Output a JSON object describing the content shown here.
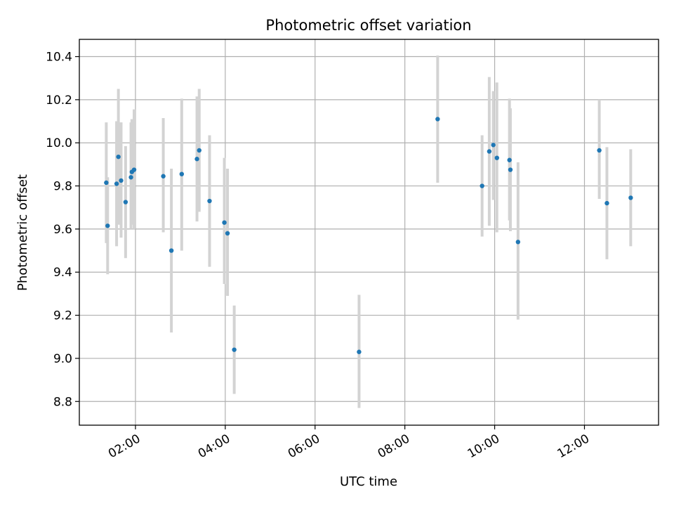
{
  "chart_data": {
    "type": "scatter",
    "title": "Photometric offset variation",
    "xlabel": "UTC time",
    "ylabel": "Photometric offset",
    "xlim_hours": [
      0.75,
      13.65
    ],
    "ylim": [
      8.69,
      10.48
    ],
    "x_ticks": [
      {
        "label": "02:00",
        "hours": 2
      },
      {
        "label": "04:00",
        "hours": 4
      },
      {
        "label": "06:00",
        "hours": 6
      },
      {
        "label": "08:00",
        "hours": 8
      },
      {
        "label": "10:00",
        "hours": 10
      },
      {
        "label": "12:00",
        "hours": 12
      }
    ],
    "y_ticks": [
      {
        "label": "8.8",
        "value": 8.8
      },
      {
        "label": "9.0",
        "value": 9.0
      },
      {
        "label": "9.2",
        "value": 9.2
      },
      {
        "label": "9.4",
        "value": 9.4
      },
      {
        "label": "9.6",
        "value": 9.6
      },
      {
        "label": "9.8",
        "value": 9.8
      },
      {
        "label": "10.0",
        "value": 10.0
      },
      {
        "label": "10.2",
        "value": 10.2
      },
      {
        "label": "10.4",
        "value": 10.4
      }
    ],
    "grid": true,
    "point_color": "#1f77b4",
    "errorbar_color": "#d3d3d3",
    "points": [
      {
        "hours": 1.35,
        "y": 9.815,
        "lo": 9.535,
        "hi": 10.095
      },
      {
        "hours": 1.38,
        "y": 9.615,
        "lo": 9.39,
        "hi": 9.84
      },
      {
        "hours": 1.58,
        "y": 9.81,
        "lo": 9.52,
        "hi": 10.1
      },
      {
        "hours": 1.62,
        "y": 9.935,
        "lo": 9.62,
        "hi": 10.25
      },
      {
        "hours": 1.68,
        "y": 9.825,
        "lo": 9.56,
        "hi": 10.095
      },
      {
        "hours": 1.78,
        "y": 9.725,
        "lo": 9.465,
        "hi": 9.985
      },
      {
        "hours": 1.9,
        "y": 9.84,
        "lo": 9.6,
        "hi": 10.095
      },
      {
        "hours": 1.92,
        "y": 9.865,
        "lo": 9.62,
        "hi": 10.11
      },
      {
        "hours": 1.97,
        "y": 9.875,
        "lo": 9.6,
        "hi": 10.155
      },
      {
        "hours": 2.62,
        "y": 9.845,
        "lo": 9.585,
        "hi": 10.115
      },
      {
        "hours": 2.8,
        "y": 9.5,
        "lo": 9.12,
        "hi": 9.88
      },
      {
        "hours": 3.03,
        "y": 9.855,
        "lo": 9.5,
        "hi": 10.205
      },
      {
        "hours": 3.37,
        "y": 9.925,
        "lo": 9.635,
        "hi": 10.215
      },
      {
        "hours": 3.42,
        "y": 9.965,
        "lo": 9.68,
        "hi": 10.25
      },
      {
        "hours": 3.65,
        "y": 9.73,
        "lo": 9.425,
        "hi": 10.035
      },
      {
        "hours": 3.98,
        "y": 9.63,
        "lo": 9.345,
        "hi": 9.93
      },
      {
        "hours": 4.05,
        "y": 9.58,
        "lo": 9.29,
        "hi": 9.88
      },
      {
        "hours": 4.2,
        "y": 9.04,
        "lo": 8.835,
        "hi": 9.245
      },
      {
        "hours": 6.98,
        "y": 9.03,
        "lo": 8.77,
        "hi": 9.295
      },
      {
        "hours": 8.73,
        "y": 10.11,
        "lo": 9.815,
        "hi": 10.405
      },
      {
        "hours": 9.72,
        "y": 9.8,
        "lo": 9.565,
        "hi": 10.035
      },
      {
        "hours": 9.88,
        "y": 9.96,
        "lo": 9.615,
        "hi": 10.305
      },
      {
        "hours": 9.97,
        "y": 9.99,
        "lo": 9.735,
        "hi": 10.24
      },
      {
        "hours": 10.05,
        "y": 9.93,
        "lo": 9.585,
        "hi": 10.28
      },
      {
        "hours": 10.33,
        "y": 9.92,
        "lo": 9.64,
        "hi": 10.205
      },
      {
        "hours": 10.35,
        "y": 9.875,
        "lo": 9.59,
        "hi": 10.16
      },
      {
        "hours": 10.52,
        "y": 9.54,
        "lo": 9.18,
        "hi": 9.91
      },
      {
        "hours": 12.33,
        "y": 9.965,
        "lo": 9.74,
        "hi": 10.2
      },
      {
        "hours": 12.5,
        "y": 9.72,
        "lo": 9.46,
        "hi": 9.98
      },
      {
        "hours": 13.03,
        "y": 9.745,
        "lo": 9.52,
        "hi": 9.97
      }
    ]
  }
}
